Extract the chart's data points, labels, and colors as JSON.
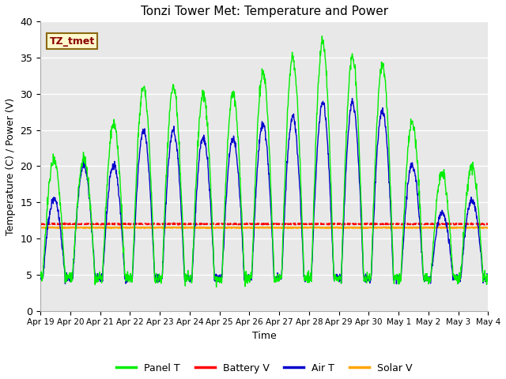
{
  "title": "Tonzi Tower Met: Temperature and Power",
  "xlabel": "Time",
  "ylabel": "Temperature (C) / Power (V)",
  "ylim": [
    0,
    40
  ],
  "annotation_text": "TZ_tmet",
  "annotation_color": "#8B0000",
  "annotation_bg": "#FFFACD",
  "annotation_border": "#8B6914",
  "fig_bg": "#FFFFFF",
  "plot_bg": "#E8E8E8",
  "grid_color": "#FFFFFF",
  "panel_T_color": "#00EE00",
  "battery_V_color": "#FF0000",
  "air_T_color": "#0000CC",
  "solar_V_color": "#FFA500",
  "xtick_labels": [
    "Apr 19",
    "Apr 20",
    "Apr 21",
    "Apr 22",
    "Apr 23",
    "Apr 24",
    "Apr 25",
    "Apr 26",
    "Apr 27",
    "Apr 28",
    "Apr 29",
    "Apr 30",
    "May 1",
    "May 2",
    "May 3",
    "May 4"
  ],
  "battery_V_mean": 12.0,
  "solar_V_mean": 11.5,
  "n_points": 1500
}
